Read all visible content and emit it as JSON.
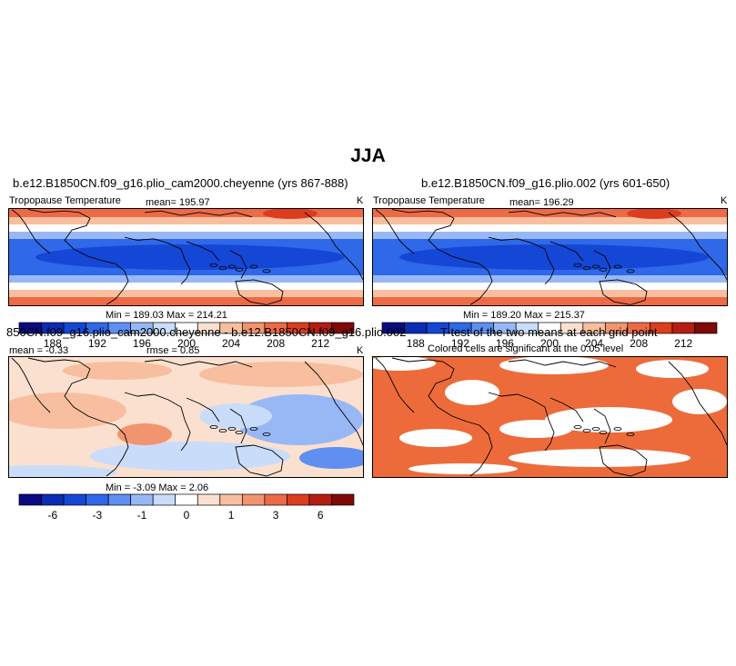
{
  "title": "JJA",
  "colors": {
    "abs_palette": [
      "#0a0a82",
      "#0b2bb5",
      "#1547d6",
      "#2f68e8",
      "#5f8ff0",
      "#98b8f5",
      "#c9dcfa",
      "#ffffff",
      "#fbe0cf",
      "#f7bf9f",
      "#f29470",
      "#ec6a46",
      "#dc3d1e",
      "#b51d12",
      "#7e0a08"
    ],
    "diff_palette": [
      "#0a0a82",
      "#0b2bb5",
      "#1547d6",
      "#2f68e8",
      "#5f8ff0",
      "#98b8f5",
      "#c9dcfa",
      "#ffffff",
      "#fbe0cf",
      "#f7bf9f",
      "#f29470",
      "#ec6a46",
      "#dc3d1e",
      "#b51d12",
      "#7e0a08"
    ],
    "significant": "#ed6b3a",
    "coast": "#000000"
  },
  "panels": {
    "p1": {
      "title": "b.e12.B1850CN.f09_g16.plio_cam2000.cheyenne (yrs 867-888)",
      "left_label": "Tropopause Temperature",
      "mean_text": "mean= 195.97",
      "units": "K",
      "minmax": "Min = 189.03 Max = 214.21"
    },
    "p2": {
      "title": "b.e12.B1850CN.f09_g16.plio.002 (yrs 601-650)",
      "left_label": "Tropopause Temperature",
      "mean_text": "mean= 196.29",
      "units": "K",
      "minmax": "Min = 189.20 Max = 215.37"
    },
    "p3": {
      "title": "850CN.f09_g16.plio_cam2000.cheyenne - b.e12.B1850CN.f09_g16.plio.002",
      "left_label": "mean = -0.33",
      "mean_text": "rmse = 0.85",
      "units": "K",
      "minmax": "Min = -3.09 Max = 2.06"
    },
    "p4": {
      "title": "T-test of the two means at each grid point",
      "subtitle": "Colored cells are significant at the 0.05 level"
    }
  },
  "colorbars": {
    "abs_ticks": [
      "188",
      "192",
      "196",
      "200",
      "204",
      "208",
      "212"
    ],
    "diff_ticks": [
      "-6",
      "-3",
      "-1",
      "0",
      "1",
      "3",
      "6"
    ]
  }
}
